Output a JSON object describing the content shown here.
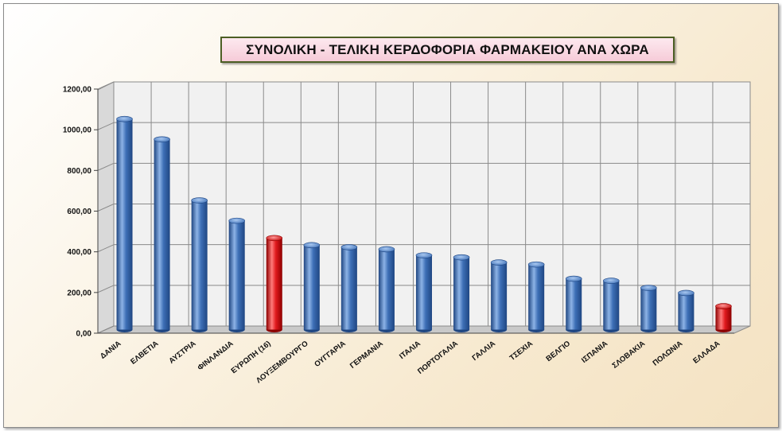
{
  "chart_data": {
    "type": "bar",
    "title": "ΣΥΝΟΛΙΚΗ - ΤΕΛΙΚΗ ΚΕΡΔΟΦΟΡΙΑ ΦΑΡΜΑΚΕΙΟΥ ΑΝΑ ΧΩΡΑ",
    "xlabel": "",
    "ylabel": "",
    "ylim": [
      0,
      1200
    ],
    "yticks": [
      "0,00",
      "200,00",
      "400,00",
      "600,00",
      "800,00",
      "1000,00",
      "1200,00"
    ],
    "categories": [
      "ΔΑΝΙΑ",
      "ΕΛΒΕΤΙΑ",
      "ΑΥΣΤΡΙΑ",
      "ΦΙΝΛΑΝΔΙΑ",
      "ΕΥΡΩΠΗ (16)",
      "ΛΟΥΞΕΜΒΟΥΡΓΟ",
      "ΟΥΓΓΑΡΙΑ",
      "ΓΕΡΜΑΝΙΑ",
      "ΙΤΑΛΙΑ",
      "ΠΟΡΤΟΓΑΛΙΑ",
      "ΓΑΛΛΙΑ",
      "ΤΣΕΧΙΑ",
      "ΒΕΛΓΙΟ",
      "ΙΣΠΑΝΙΑ",
      "ΣΛΟΒΑΚΙΑ",
      "ΠΟΛΩΝΙΑ",
      "ΕΛΛΑΔΑ"
    ],
    "values": [
      1035,
      935,
      635,
      535,
      450,
      415,
      405,
      395,
      365,
      355,
      330,
      320,
      250,
      240,
      205,
      180,
      115
    ],
    "highlight": [
      "ΕΥΡΩΠΗ (16)",
      "ΕΛΛΑΔΑ"
    ],
    "grid": true,
    "legend": "none",
    "colors": {
      "bar": "#3d6fb6",
      "bar_light": "#8db3e6",
      "bar_dark": "#1f4682",
      "highlight": "#e0191d",
      "highlight_light": "#ff7a7a",
      "highlight_dark": "#8c0000",
      "wall": "#f1f1f1",
      "grid": "#8a8a8a"
    }
  }
}
